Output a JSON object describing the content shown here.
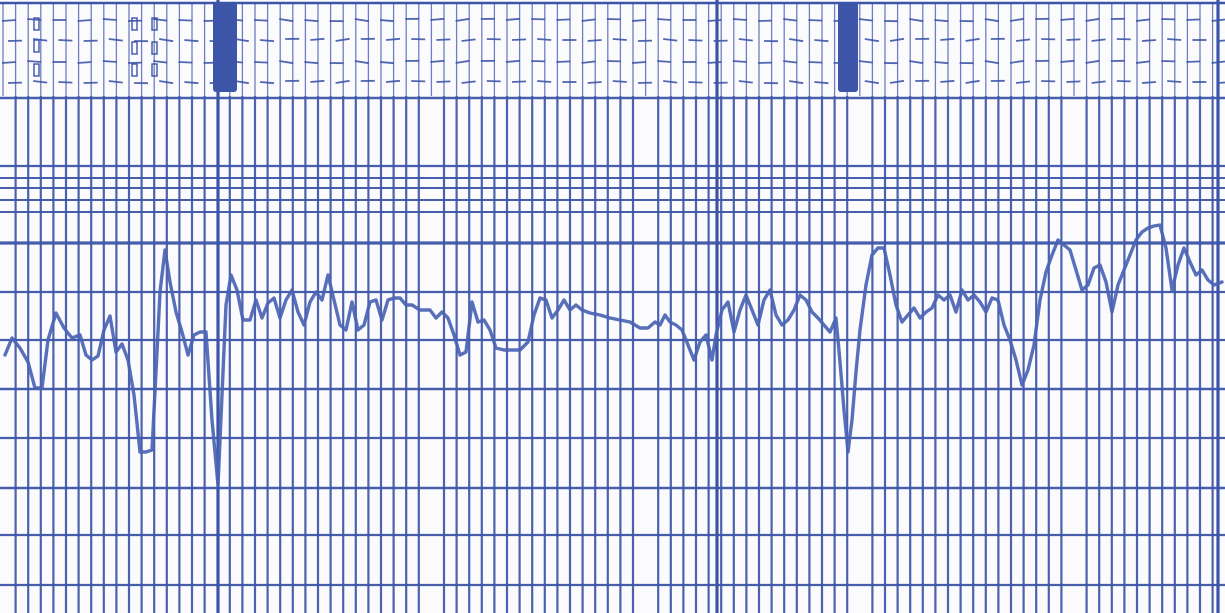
{
  "recording": {
    "ink_color": "#3d55a8",
    "ink_color_trace": "#4a63b3",
    "paper_color": "#fbfbfd",
    "event_mark_count": 3,
    "trace": [
      [
        5,
        355
      ],
      [
        12,
        338
      ],
      [
        20,
        348
      ],
      [
        28,
        362
      ],
      [
        35,
        388
      ],
      [
        42,
        388
      ],
      [
        48,
        340
      ],
      [
        56,
        313
      ],
      [
        64,
        328
      ],
      [
        72,
        338
      ],
      [
        80,
        335
      ],
      [
        86,
        355
      ],
      [
        92,
        360
      ],
      [
        98,
        356
      ],
      [
        104,
        330
      ],
      [
        110,
        316
      ],
      [
        116,
        352
      ],
      [
        122,
        344
      ],
      [
        128,
        360
      ],
      [
        134,
        395
      ],
      [
        140,
        452
      ],
      [
        146,
        452
      ],
      [
        152,
        450
      ],
      [
        156,
        372
      ],
      [
        160,
        292
      ],
      [
        165,
        250
      ],
      [
        170,
        282
      ],
      [
        176,
        312
      ],
      [
        182,
        332
      ],
      [
        188,
        355
      ],
      [
        194,
        335
      ],
      [
        200,
        332
      ],
      [
        206,
        332
      ],
      [
        212,
        420
      ],
      [
        218,
        485
      ],
      [
        222,
        395
      ],
      [
        226,
        305
      ],
      [
        231,
        275
      ],
      [
        237,
        290
      ],
      [
        243,
        320
      ],
      [
        250,
        320
      ],
      [
        256,
        300
      ],
      [
        262,
        318
      ],
      [
        268,
        303
      ],
      [
        274,
        298
      ],
      [
        280,
        318
      ],
      [
        286,
        300
      ],
      [
        292,
        290
      ],
      [
        298,
        312
      ],
      [
        304,
        325
      ],
      [
        310,
        302
      ],
      [
        316,
        292
      ],
      [
        322,
        300
      ],
      [
        328,
        275
      ],
      [
        334,
        300
      ],
      [
        340,
        325
      ],
      [
        346,
        330
      ],
      [
        352,
        302
      ],
      [
        358,
        330
      ],
      [
        364,
        325
      ],
      [
        370,
        302
      ],
      [
        376,
        300
      ],
      [
        382,
        320
      ],
      [
        388,
        300
      ],
      [
        394,
        298
      ],
      [
        400,
        298
      ],
      [
        406,
        305
      ],
      [
        412,
        305
      ],
      [
        420,
        310
      ],
      [
        430,
        310
      ],
      [
        436,
        318
      ],
      [
        442,
        312
      ],
      [
        448,
        318
      ],
      [
        454,
        335
      ],
      [
        460,
        355
      ],
      [
        466,
        352
      ],
      [
        472,
        302
      ],
      [
        478,
        322
      ],
      [
        484,
        320
      ],
      [
        490,
        330
      ],
      [
        496,
        348
      ],
      [
        504,
        350
      ],
      [
        512,
        350
      ],
      [
        520,
        350
      ],
      [
        528,
        342
      ],
      [
        534,
        315
      ],
      [
        540,
        298
      ],
      [
        546,
        300
      ],
      [
        552,
        318
      ],
      [
        558,
        310
      ],
      [
        564,
        300
      ],
      [
        570,
        310
      ],
      [
        576,
        305
      ],
      [
        582,
        310
      ],
      [
        590,
        313
      ],
      [
        600,
        315
      ],
      [
        610,
        318
      ],
      [
        620,
        320
      ],
      [
        630,
        322
      ],
      [
        640,
        328
      ],
      [
        648,
        328
      ],
      [
        655,
        322
      ],
      [
        660,
        325
      ],
      [
        665,
        315
      ],
      [
        670,
        322
      ],
      [
        676,
        325
      ],
      [
        682,
        330
      ],
      [
        688,
        345
      ],
      [
        694,
        360
      ],
      [
        700,
        342
      ],
      [
        706,
        335
      ],
      [
        712,
        360
      ],
      [
        716,
        335
      ],
      [
        722,
        310
      ],
      [
        728,
        302
      ],
      [
        734,
        332
      ],
      [
        740,
        310
      ],
      [
        746,
        295
      ],
      [
        752,
        310
      ],
      [
        758,
        325
      ],
      [
        764,
        300
      ],
      [
        770,
        290
      ],
      [
        776,
        315
      ],
      [
        782,
        325
      ],
      [
        788,
        320
      ],
      [
        794,
        310
      ],
      [
        800,
        295
      ],
      [
        806,
        300
      ],
      [
        812,
        312
      ],
      [
        818,
        318
      ],
      [
        824,
        325
      ],
      [
        830,
        332
      ],
      [
        836,
        318
      ],
      [
        840,
        362
      ],
      [
        844,
        410
      ],
      [
        848,
        452
      ],
      [
        852,
        420
      ],
      [
        856,
        372
      ],
      [
        860,
        330
      ],
      [
        866,
        285
      ],
      [
        872,
        255
      ],
      [
        878,
        248
      ],
      [
        884,
        248
      ],
      [
        890,
        275
      ],
      [
        896,
        305
      ],
      [
        902,
        322
      ],
      [
        908,
        315
      ],
      [
        914,
        308
      ],
      [
        920,
        318
      ],
      [
        926,
        312
      ],
      [
        932,
        308
      ],
      [
        938,
        295
      ],
      [
        944,
        300
      ],
      [
        950,
        295
      ],
      [
        956,
        312
      ],
      [
        962,
        290
      ],
      [
        968,
        300
      ],
      [
        974,
        295
      ],
      [
        980,
        302
      ],
      [
        986,
        312
      ],
      [
        992,
        298
      ],
      [
        998,
        300
      ],
      [
        1004,
        325
      ],
      [
        1010,
        340
      ],
      [
        1016,
        360
      ],
      [
        1022,
        385
      ],
      [
        1028,
        370
      ],
      [
        1034,
        345
      ],
      [
        1040,
        300
      ],
      [
        1046,
        272
      ],
      [
        1052,
        255
      ],
      [
        1058,
        240
      ],
      [
        1064,
        245
      ],
      [
        1070,
        250
      ],
      [
        1076,
        270
      ],
      [
        1082,
        290
      ],
      [
        1088,
        285
      ],
      [
        1094,
        268
      ],
      [
        1100,
        265
      ],
      [
        1106,
        282
      ],
      [
        1112,
        312
      ],
      [
        1118,
        285
      ],
      [
        1124,
        270
      ],
      [
        1130,
        255
      ],
      [
        1136,
        240
      ],
      [
        1142,
        232
      ],
      [
        1148,
        228
      ],
      [
        1154,
        226
      ],
      [
        1160,
        225
      ],
      [
        1166,
        248
      ],
      [
        1172,
        290
      ],
      [
        1178,
        265
      ],
      [
        1184,
        248
      ],
      [
        1190,
        262
      ],
      [
        1196,
        275
      ],
      [
        1202,
        270
      ],
      [
        1208,
        280
      ],
      [
        1214,
        285
      ],
      [
        1222,
        282
      ]
    ]
  }
}
